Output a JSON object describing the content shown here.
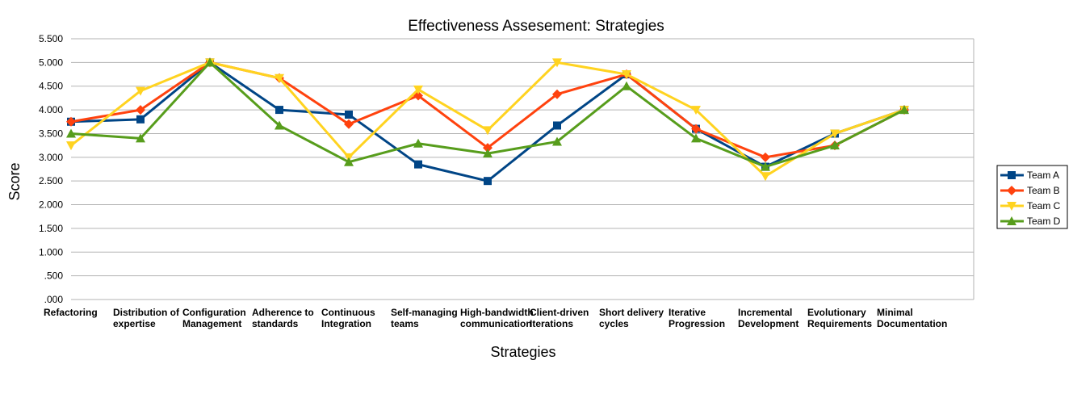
{
  "chart_data": {
    "type": "line",
    "title": "Effectiveness Assesement: Strategies",
    "xlabel": "Strategies",
    "ylabel": "Score",
    "ylim": [
      0,
      5.5
    ],
    "yticks": [
      ".000",
      ".500",
      "1.000",
      "1.500",
      "2.000",
      "2.500",
      "3.000",
      "3.500",
      "4.000",
      "4.500",
      "5.000",
      "5.500"
    ],
    "grid": true,
    "legend_position": "right",
    "categories": [
      [
        "Refactoring"
      ],
      [
        "Distribution of",
        "expertise"
      ],
      [
        "Configuration",
        "Management"
      ],
      [
        "Adherence to",
        "standards"
      ],
      [
        "Continuous",
        "Integration"
      ],
      [
        "Self-managing",
        "teams"
      ],
      [
        "High-bandwidth",
        "communication"
      ],
      [
        "Client-driven",
        "Iterations"
      ],
      [
        "Short delivery",
        "cycles"
      ],
      [
        "Iterative",
        "Progression"
      ],
      [
        "Incremental",
        "Development"
      ],
      [
        "Evolutionary",
        "Requirements"
      ],
      [
        "Minimal",
        "Documentation"
      ]
    ],
    "series": [
      {
        "name": "Team A",
        "color": "#004586",
        "marker": "square",
        "values": [
          3.75,
          3.8,
          5.0,
          4.0,
          3.9,
          2.85,
          2.5,
          3.67,
          4.75,
          3.6,
          2.8,
          3.5,
          4.0
        ]
      },
      {
        "name": "Team B",
        "color": "#ff420e",
        "marker": "diamond",
        "values": [
          3.75,
          4.0,
          5.0,
          4.67,
          3.7,
          4.3,
          3.2,
          4.33,
          4.75,
          3.6,
          3.0,
          3.25,
          4.0
        ]
      },
      {
        "name": "Team C",
        "color": "#ffd320",
        "marker": "triangle-down",
        "values": [
          3.25,
          4.4,
          5.0,
          4.67,
          3.0,
          4.43,
          3.57,
          5.0,
          4.75,
          4.0,
          2.6,
          3.5,
          4.0
        ]
      },
      {
        "name": "Team D",
        "color": "#579d1c",
        "marker": "triangle-up",
        "values": [
          3.5,
          3.4,
          5.0,
          3.67,
          2.9,
          3.29,
          3.08,
          3.33,
          4.5,
          3.4,
          2.8,
          3.25,
          4.0
        ]
      }
    ]
  }
}
